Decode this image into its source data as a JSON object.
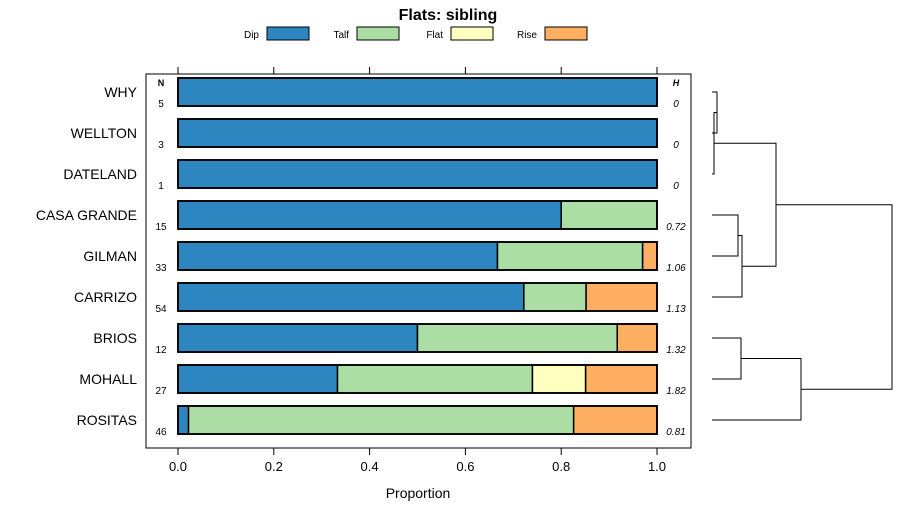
{
  "chart_data": {
    "type": "bar",
    "orientation": "horizontal",
    "stacked": true,
    "title": "Flats: sibling",
    "xlabel": "Proportion",
    "ylabel": "",
    "xlim": [
      0,
      1
    ],
    "x_ticks": [
      "0.0",
      "0.2",
      "0.4",
      "0.6",
      "0.8",
      "1.0"
    ],
    "legend": {
      "position": "top",
      "entries": [
        {
          "name": "Dip",
          "color": "#2e86c1"
        },
        {
          "name": "Talf",
          "color": "#abdda4"
        },
        {
          "name": "Flat",
          "color": "#ffffbf"
        },
        {
          "name": "Rise",
          "color": "#fdae61"
        }
      ]
    },
    "n_header": "N",
    "h_header": "H",
    "categories": [
      "WHY",
      "WELLTON",
      "DATELAND",
      "CASA GRANDE",
      "GILMAN",
      "CARRIZO",
      "BRIOS",
      "MOHALL",
      "ROSITAS"
    ],
    "n_values": [
      "5",
      "3",
      "1",
      "15",
      "33",
      "54",
      "12",
      "27",
      "46"
    ],
    "h_values": [
      "0",
      "0",
      "0",
      "0.72",
      "1.06",
      "1.13",
      "1.32",
      "1.82",
      "0.81"
    ],
    "series": [
      {
        "name": "Dip",
        "values": [
          1.0,
          1.0,
          1.0,
          0.8,
          0.667,
          0.722,
          0.5,
          0.333,
          0.022
        ]
      },
      {
        "name": "Talf",
        "values": [
          0.0,
          0.0,
          0.0,
          0.2,
          0.303,
          0.13,
          0.417,
          0.407,
          0.804
        ]
      },
      {
        "name": "Flat",
        "values": [
          0.0,
          0.0,
          0.0,
          0.0,
          0.0,
          0.0,
          0.0,
          0.111,
          0.0
        ]
      },
      {
        "name": "Rise",
        "values": [
          0.0,
          0.0,
          0.0,
          0.0,
          0.03,
          0.148,
          0.083,
          0.149,
          0.174
        ]
      }
    ],
    "dendrogram": {
      "leaf_order": [
        "WHY",
        "WELLTON",
        "DATELAND",
        "CASA GRANDE",
        "GILMAN",
        "CARRIZO",
        "BRIOS",
        "MOHALL",
        "ROSITAS"
      ],
      "merges": [
        {
          "a": "WHY",
          "b": "WELLTON",
          "height": 0.05
        },
        {
          "a": "WHY+WELLTON",
          "b": "DATELAND",
          "height": 0.02
        },
        {
          "a": "CASA GRANDE",
          "b": "GILMAN",
          "height": 0.26
        },
        {
          "a": "CASA GRANDE+GILMAN",
          "b": "CARRIZO",
          "height": 0.3
        },
        {
          "a": "DIP-GROUP",
          "b": "MIXED-GROUP",
          "height": 0.64
        },
        {
          "a": "BRIOS",
          "b": "MOHALL",
          "height": 0.29
        },
        {
          "a": "BRIOS+MOHALL",
          "b": "ROSITAS",
          "height": 0.89
        },
        {
          "a": "UPPER",
          "b": "LOWER",
          "height": 1.8
        }
      ]
    }
  }
}
